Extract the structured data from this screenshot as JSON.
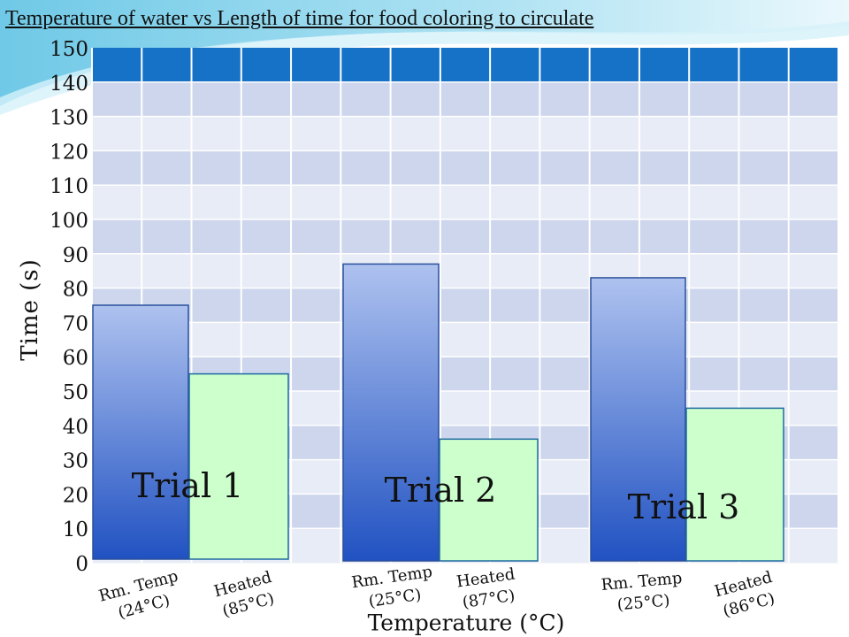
{
  "title": "Temperature of water vs Length of time for food coloring to circulate",
  "colors": {
    "header_band": "#1572c7",
    "grid_band_a": "#cdd6ec",
    "grid_band_b": "#e8ecf6",
    "room_temp_bar_top": "#aec2ef",
    "room_temp_bar_bottom": "#2152c2",
    "heated_bar": "#ccffcc",
    "background_swoosh": "#7fcfe8"
  },
  "chart_data": {
    "type": "bar",
    "title": "Temperature of water vs Length of time for food coloring to circulate",
    "xlabel": "Temperature (°C)",
    "ylabel": "Time (s)",
    "ylim": [
      0,
      150
    ],
    "yticks": [
      0,
      10,
      20,
      30,
      40,
      50,
      60,
      70,
      80,
      90,
      100,
      110,
      120,
      130,
      140,
      150
    ],
    "grid": true,
    "categories": [
      "Trial 1",
      "Trial 2",
      "Trial 3"
    ],
    "bars": [
      {
        "group": "Trial 1",
        "label": "Rm. Temp (24°C)",
        "kind": "room",
        "value": 75
      },
      {
        "group": "Trial 1",
        "label": "Heated (85°C)",
        "kind": "heated",
        "value": 55
      },
      {
        "group": "Trial 2",
        "label": "Rm. Temp (25°C)",
        "kind": "room",
        "value": 87
      },
      {
        "group": "Trial 2",
        "label": "Heated (87°C)",
        "kind": "heated",
        "value": 36
      },
      {
        "group": "Trial 3",
        "label": "Rm. Temp (25°C)",
        "kind": "room",
        "value": 83
      },
      {
        "group": "Trial 3",
        "label": "Heated (86°C)",
        "kind": "heated",
        "value": 45
      }
    ],
    "group_labels": [
      "Trial 1",
      "Trial 2",
      "Trial 3"
    ]
  }
}
